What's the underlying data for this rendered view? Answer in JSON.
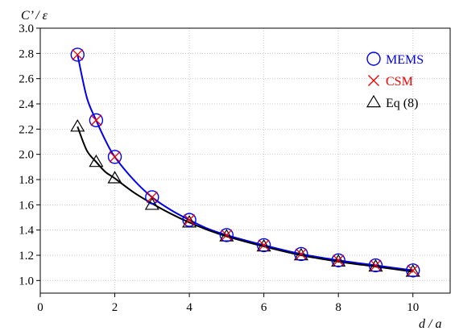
{
  "chart_data": {
    "type": "scatter",
    "xlabel": "d / a",
    "ylabel": "C’ / ε",
    "xlim": [
      0,
      11
    ],
    "ylim": [
      0.9,
      3.0
    ],
    "xticks": [
      0,
      2,
      4,
      6,
      8,
      10
    ],
    "yticks": [
      1.0,
      1.2,
      1.4,
      1.6,
      1.8,
      2.0,
      2.2,
      2.4,
      2.6,
      2.8,
      3.0
    ],
    "ytick_labels": [
      "1.0",
      "1.2",
      "1.4",
      "1.6",
      "1.8",
      "2.0",
      "2.2",
      "2.4",
      "2.6",
      "2.8",
      "3.0"
    ],
    "grid": true,
    "legend_position": "top-right",
    "series": [
      {
        "name": "MEMS",
        "marker": "circle",
        "color": "#0000ee",
        "x": [
          1,
          1.5,
          2,
          3,
          4,
          5,
          6,
          7,
          8,
          9,
          10
        ],
        "y": [
          2.79,
          2.27,
          1.98,
          1.66,
          1.48,
          1.36,
          1.28,
          1.21,
          1.16,
          1.12,
          1.08
        ]
      },
      {
        "name": "CSM",
        "marker": "x",
        "color": "#ee0000",
        "x": [
          1,
          1.5,
          2,
          3,
          4,
          5,
          6,
          7,
          8,
          9,
          10
        ],
        "y": [
          2.79,
          2.27,
          1.98,
          1.66,
          1.48,
          1.36,
          1.28,
          1.21,
          1.16,
          1.12,
          1.08
        ]
      },
      {
        "name": "Eq (8)",
        "marker": "triangle",
        "color": "#000000",
        "x": [
          1,
          1.5,
          2,
          3,
          4,
          5,
          6,
          7,
          8,
          9,
          10
        ],
        "y": [
          2.22,
          1.94,
          1.81,
          1.6,
          1.46,
          1.35,
          1.27,
          1.2,
          1.15,
          1.11,
          1.07
        ]
      }
    ],
    "curves": [
      {
        "color": "#0000ee",
        "x": [
          1,
          1.25,
          1.5,
          1.75,
          2,
          2.5,
          3,
          3.5,
          4,
          4.5,
          5,
          6,
          7,
          8,
          9,
          10
        ],
        "y": [
          2.79,
          2.45,
          2.27,
          2.11,
          1.98,
          1.8,
          1.66,
          1.56,
          1.48,
          1.41,
          1.36,
          1.28,
          1.21,
          1.16,
          1.12,
          1.08
        ]
      },
      {
        "color": "#000000",
        "x": [
          1,
          1.25,
          1.5,
          1.75,
          2,
          2.5,
          3,
          3.5,
          4,
          4.5,
          5,
          6,
          7,
          8,
          9,
          10
        ],
        "y": [
          2.22,
          2.03,
          1.94,
          1.86,
          1.81,
          1.7,
          1.61,
          1.53,
          1.46,
          1.4,
          1.35,
          1.27,
          1.2,
          1.15,
          1.11,
          1.07
        ]
      }
    ]
  }
}
